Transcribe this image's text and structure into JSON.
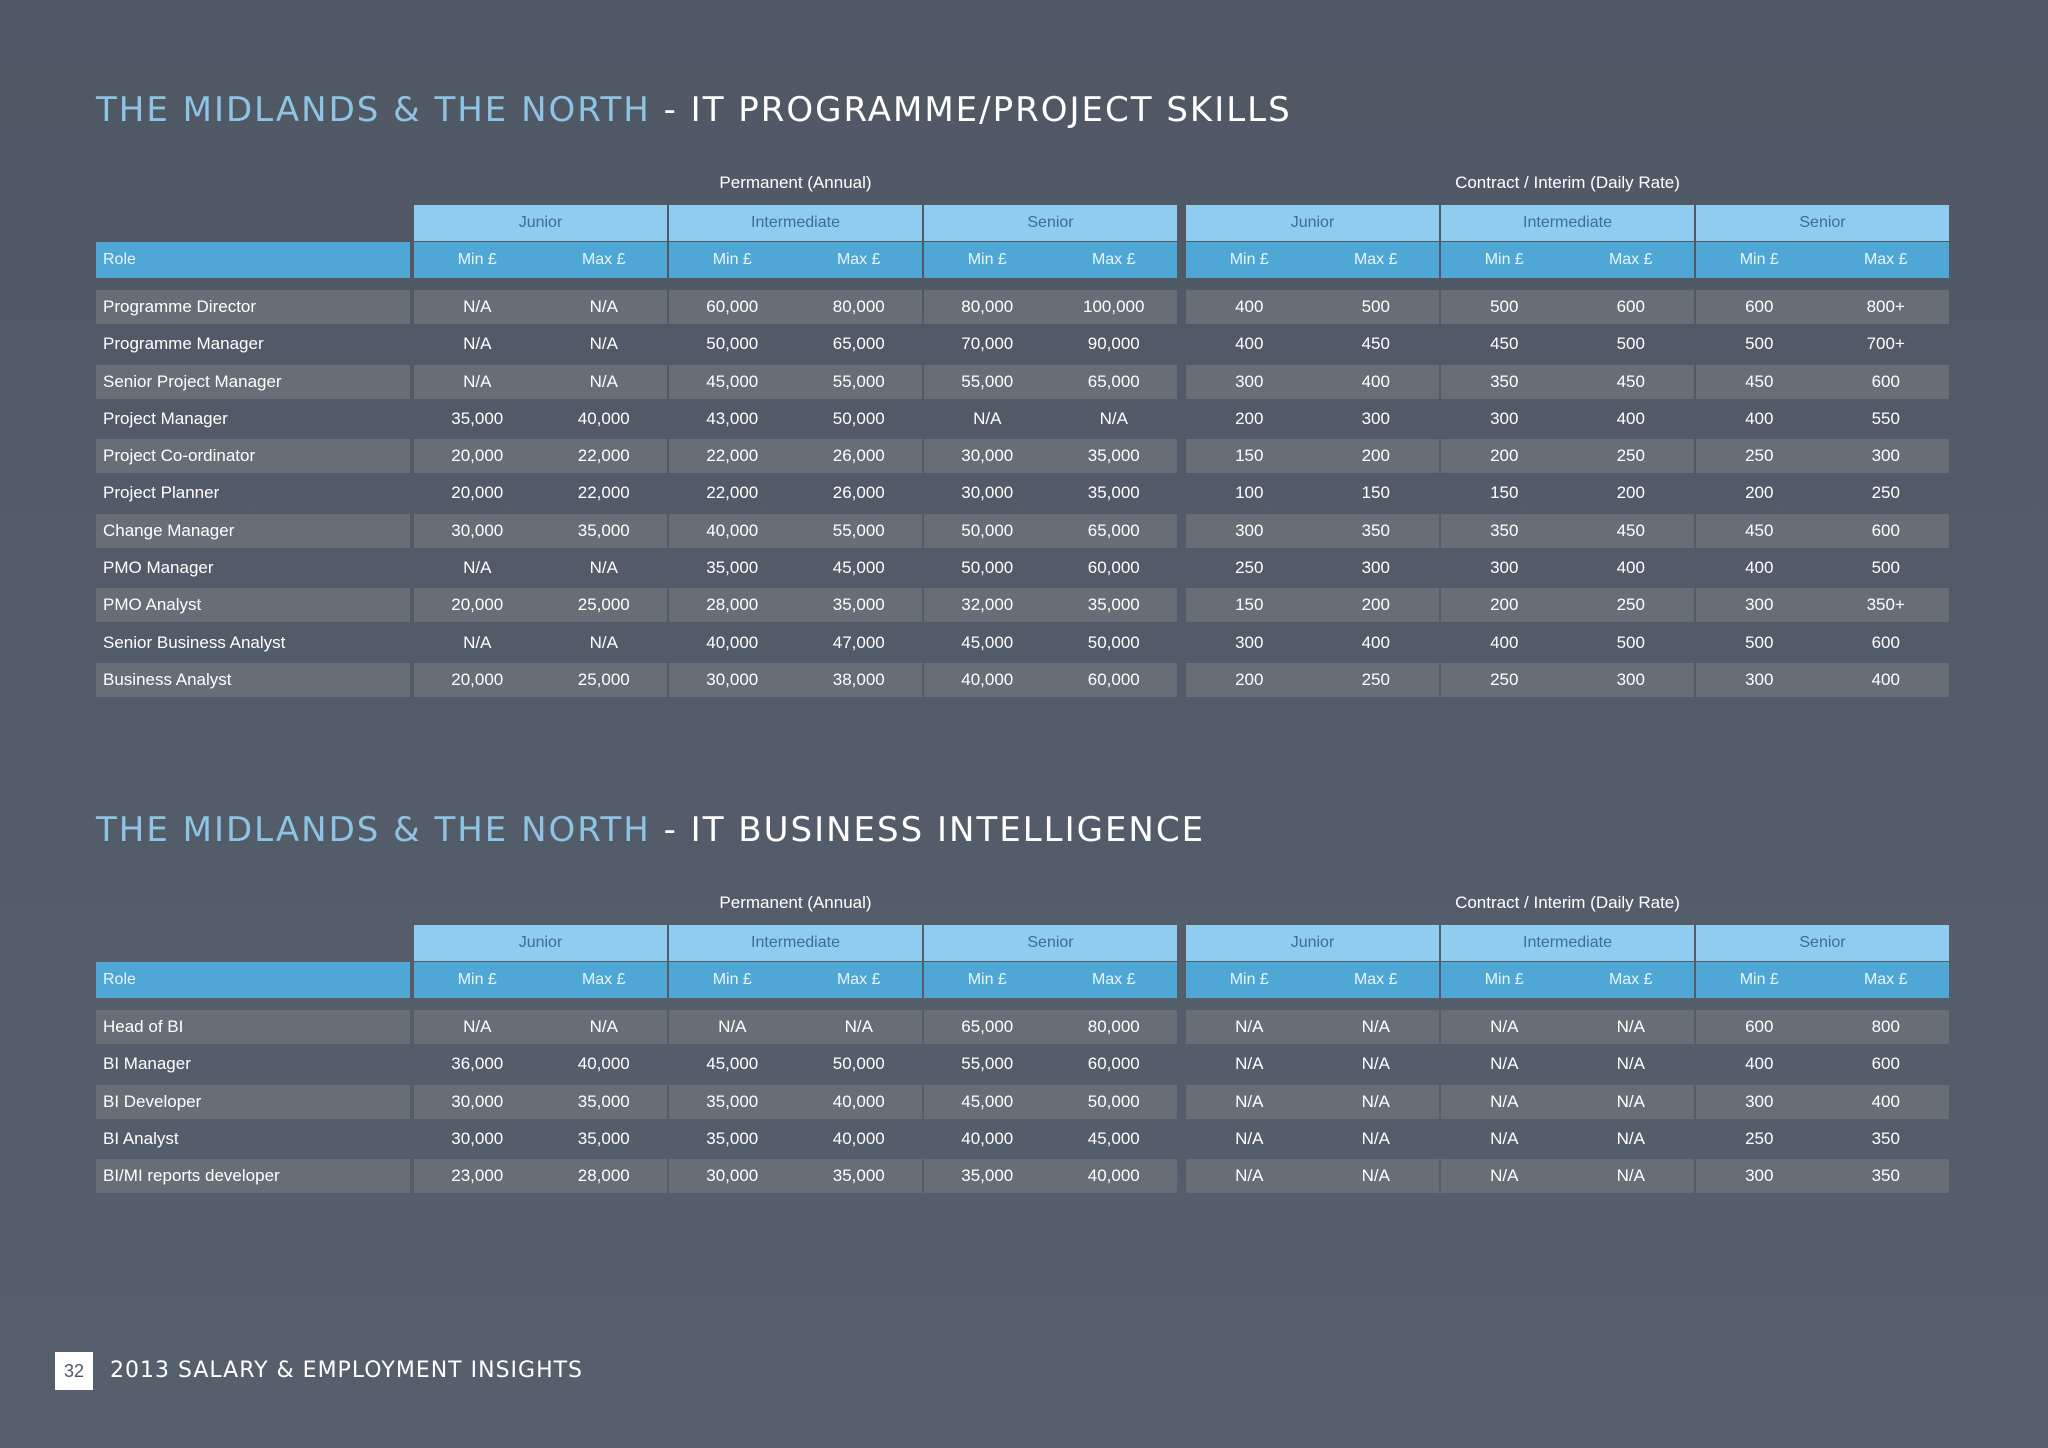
{
  "tables": [
    {
      "title_region": "THE MIDLANDS & THE NORTH",
      "title_sep": " - ",
      "title_subject": "IT PROGRAMME/PROJECT SKILLS",
      "group_permanent": "Permanent (Annual)",
      "group_contract": "Contract / Interim (Daily Rate)",
      "levels": [
        "Junior",
        "Intermediate",
        "Senior",
        "Junior",
        "Intermediate",
        "Senior"
      ],
      "role_header": "Role",
      "min_label": "Min £",
      "max_label": "Max £",
      "rows": [
        {
          "role": "Programme Director",
          "values": [
            "N/A",
            "N/A",
            "60,000",
            "80,000",
            "80,000",
            "100,000",
            "400",
            "500",
            "500",
            "600",
            "600",
            "800+"
          ]
        },
        {
          "role": "Programme Manager",
          "values": [
            "N/A",
            "N/A",
            "50,000",
            "65,000",
            "70,000",
            "90,000",
            "400",
            "450",
            "450",
            "500",
            "500",
            "700+"
          ]
        },
        {
          "role": "Senior Project Manager",
          "values": [
            "N/A",
            "N/A",
            "45,000",
            "55,000",
            "55,000",
            "65,000",
            "300",
            "400",
            "350",
            "450",
            "450",
            "600"
          ]
        },
        {
          "role": "Project Manager",
          "values": [
            "35,000",
            "40,000",
            "43,000",
            "50,000",
            "N/A",
            "N/A",
            "200",
            "300",
            "300",
            "400",
            "400",
            "550"
          ]
        },
        {
          "role": "Project Co-ordinator",
          "values": [
            "20,000",
            "22,000",
            "22,000",
            "26,000",
            "30,000",
            "35,000",
            "150",
            "200",
            "200",
            "250",
            "250",
            "300"
          ]
        },
        {
          "role": "Project Planner",
          "values": [
            "20,000",
            "22,000",
            "22,000",
            "26,000",
            "30,000",
            "35,000",
            "100",
            "150",
            "150",
            "200",
            "200",
            "250"
          ]
        },
        {
          "role": "Change Manager",
          "values": [
            "30,000",
            "35,000",
            "40,000",
            "55,000",
            "50,000",
            "65,000",
            "300",
            "350",
            "350",
            "450",
            "450",
            "600"
          ]
        },
        {
          "role": "PMO Manager",
          "values": [
            "N/A",
            "N/A",
            "35,000",
            "45,000",
            "50,000",
            "60,000",
            "250",
            "300",
            "300",
            "400",
            "400",
            "500"
          ]
        },
        {
          "role": "PMO Analyst",
          "values": [
            "20,000",
            "25,000",
            "28,000",
            "35,000",
            "32,000",
            "35,000",
            "150",
            "200",
            "200",
            "250",
            "300",
            "350+"
          ]
        },
        {
          "role": "Senior Business Analyst",
          "values": [
            "N/A",
            "N/A",
            "40,000",
            "47,000",
            "45,000",
            "50,000",
            "300",
            "400",
            "400",
            "500",
            "500",
            "600"
          ]
        },
        {
          "role": "Business Analyst",
          "values": [
            "20,000",
            "25,000",
            "30,000",
            "38,000",
            "40,000",
            "60,000",
            "200",
            "250",
            "250",
            "300",
            "300",
            "400"
          ]
        }
      ]
    },
    {
      "title_region": "THE MIDLANDS & THE NORTH",
      "title_sep": " - ",
      "title_subject": "IT BUSINESS INTELLIGENCE",
      "group_permanent": "Permanent (Annual)",
      "group_contract": "Contract / Interim (Daily Rate)",
      "levels": [
        "Junior",
        "Intermediate",
        "Senior",
        "Junior",
        "Intermediate",
        "Senior"
      ],
      "role_header": "Role",
      "min_label": "Min £",
      "max_label": "Max £",
      "rows": [
        {
          "role": "Head of BI",
          "values": [
            "N/A",
            "N/A",
            "N/A",
            "N/A",
            "65,000",
            "80,000",
            "N/A",
            "N/A",
            "N/A",
            "N/A",
            "600",
            "800"
          ]
        },
        {
          "role": "BI Manager",
          "values": [
            "36,000",
            "40,000",
            "45,000",
            "50,000",
            "55,000",
            "60,000",
            "N/A",
            "N/A",
            "N/A",
            "N/A",
            "400",
            "600"
          ]
        },
        {
          "role": "BI Developer",
          "values": [
            "30,000",
            "35,000",
            "35,000",
            "40,000",
            "45,000",
            "50,000",
            "N/A",
            "N/A",
            "N/A",
            "N/A",
            "300",
            "400"
          ]
        },
        {
          "role": "BI Analyst",
          "values": [
            "30,000",
            "35,000",
            "35,000",
            "40,000",
            "40,000",
            "45,000",
            "N/A",
            "N/A",
            "N/A",
            "N/A",
            "250",
            "350"
          ]
        },
        {
          "role": "BI/MI reports developer",
          "values": [
            "23,000",
            "28,000",
            "30,000",
            "35,000",
            "35,000",
            "40,000",
            "N/A",
            "N/A",
            "N/A",
            "N/A",
            "300",
            "350"
          ]
        }
      ]
    }
  ],
  "footer": {
    "page_number": "32",
    "document_title": "2013 SALARY & EMPLOYMENT INSIGHTS"
  }
}
